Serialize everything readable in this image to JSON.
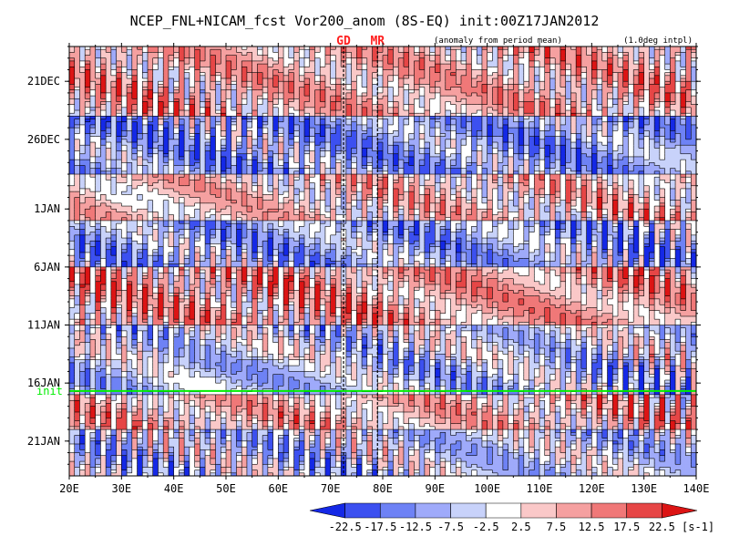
{
  "chart_data": {
    "type": "heatmap",
    "title": "NCEP_FNL+NICAM_fcst Vor200_anom (8S-EQ) init:00Z17JAN2012",
    "subtitle_left": "(anomaly from period mean)",
    "subtitle_right": "(1.0deg intpl)",
    "x_ticks": [
      {
        "value": 20,
        "label": "20E"
      },
      {
        "value": 30,
        "label": "30E"
      },
      {
        "value": 40,
        "label": "40E"
      },
      {
        "value": 50,
        "label": "50E"
      },
      {
        "value": 60,
        "label": "60E"
      },
      {
        "value": 70,
        "label": "70E"
      },
      {
        "value": 80,
        "label": "80E"
      },
      {
        "value": 90,
        "label": "90E"
      },
      {
        "value": 100,
        "label": "100E"
      },
      {
        "value": 110,
        "label": "110E"
      },
      {
        "value": 120,
        "label": "120E"
      },
      {
        "value": 130,
        "label": "130E"
      },
      {
        "value": 140,
        "label": "140E"
      }
    ],
    "xlim": [
      20,
      140
    ],
    "ylim": [
      "2011-12-18",
      "2012-01-24"
    ],
    "y_ticks": [
      {
        "value": "2011-12-21",
        "label": "21DEC"
      },
      {
        "value": "2011-12-26",
        "label": "26DEC"
      },
      {
        "value": "2012-01-01",
        "label": "1JAN"
      },
      {
        "value": "2012-01-06",
        "label": "6JAN"
      },
      {
        "value": "2012-01-11",
        "label": "11JAN"
      },
      {
        "value": "2012-01-16",
        "label": "16JAN"
      },
      {
        "value": "2012-01-21",
        "label": "21JAN"
      }
    ],
    "init_line": {
      "value": "2012-01-17",
      "label": "init",
      "color": "#00ee00"
    },
    "markers": [
      {
        "value": 72.5,
        "label": "GD",
        "color": "#ff2020"
      },
      {
        "value": 79,
        "label": "MR",
        "color": "#ff2020"
      }
    ],
    "colorbar": {
      "levels": [
        -22.5,
        -17.5,
        -12.5,
        -7.5,
        -2.5,
        2.5,
        7.5,
        12.5,
        17.5,
        22.5
      ],
      "labels": [
        "-22.5",
        "-17.5",
        "-12.5",
        "-7.5",
        "-2.5",
        "2.5",
        "7.5",
        "12.5",
        "17.5",
        "22.5"
      ],
      "colors": [
        "#1428e6",
        "#3c50f0",
        "#6e82f5",
        "#9faafa",
        "#c8d2fa",
        "#ffffff",
        "#fac8c8",
        "#f5a0a0",
        "#f07878",
        "#e64646",
        "#dc1414"
      ],
      "unit": "[s-1]"
    },
    "bands": [
      {
        "y0": "2011-12-18",
        "y1": "2011-12-24",
        "sign": 0.6
      },
      {
        "y0": "2011-12-24",
        "y1": "2011-12-29",
        "sign": -0.8
      },
      {
        "y0": "2011-12-29",
        "y1": "2012-01-02",
        "sign": 0.4
      },
      {
        "y0": "2012-01-02",
        "y1": "2012-01-06",
        "sign": -0.7
      },
      {
        "y0": "2012-01-06",
        "y1": "2012-01-11",
        "sign": 0.7
      },
      {
        "y0": "2012-01-11",
        "y1": "2012-01-14",
        "sign": -0.3
      },
      {
        "y0": "2012-01-14",
        "y1": "2012-01-17",
        "sign": -0.5
      },
      {
        "y0": "2012-01-17",
        "y1": "2012-01-20",
        "sign": 0.5
      },
      {
        "y0": "2012-01-20",
        "y1": "2012-01-24",
        "sign": -0.4
      }
    ]
  }
}
